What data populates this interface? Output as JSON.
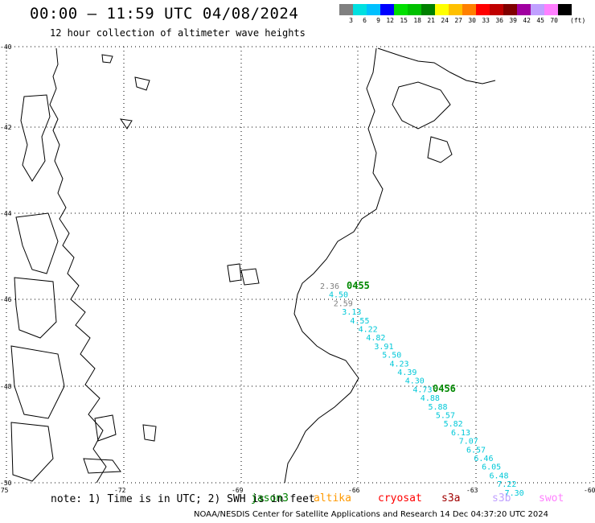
{
  "header": {
    "title": "00:00 – 11:59 UTC 04/08/2024",
    "subtitle": "12 hour collection of altimeter wave heights"
  },
  "legend": {
    "colors": [
      "#808080",
      "#00e0e0",
      "#00c0ff",
      "#0000ff",
      "#00e000",
      "#00c000",
      "#008000",
      "#ffff00",
      "#ffc000",
      "#ff8000",
      "#ff0000",
      "#c00000",
      "#800000",
      "#a000a0",
      "#c0a0ff",
      "#ff80ff",
      "#000000"
    ],
    "labels": [
      "3",
      "6",
      "9",
      "12",
      "15",
      "18",
      "21",
      "24",
      "27",
      "30",
      "33",
      "36",
      "39",
      "42",
      "45",
      "70"
    ],
    "unit": "(ft)"
  },
  "axes": {
    "lat_labels": [
      "-40",
      "-42",
      "-44",
      "-46",
      "-48",
      "-50"
    ],
    "lon_labels": [
      "-75",
      "-72",
      "-69",
      "-66",
      "-63",
      "-60"
    ]
  },
  "track": {
    "time_marks": [
      "0455",
      "0456"
    ],
    "points": [
      {
        "v": "2.36",
        "c": "#808080"
      },
      {
        "v": "4.50",
        "c": "#00c8d8"
      },
      {
        "v": "2.59",
        "c": "#808080"
      },
      {
        "v": "3.13",
        "c": "#00c8d8"
      },
      {
        "v": "4.55",
        "c": "#00c8d8"
      },
      {
        "v": "4.22",
        "c": "#00c8d8"
      },
      {
        "v": "4.82",
        "c": "#00c8d8"
      },
      {
        "v": "3.91",
        "c": "#00c8d8"
      },
      {
        "v": "5.50",
        "c": "#00c8d8"
      },
      {
        "v": "4.23",
        "c": "#00c8d8"
      },
      {
        "v": "4.39",
        "c": "#00c8d8"
      },
      {
        "v": "4.30",
        "c": "#00c8d8"
      },
      {
        "v": "4.73",
        "c": "#00c8d8"
      },
      {
        "v": "4.88",
        "c": "#00c8d8"
      },
      {
        "v": "5.88",
        "c": "#00c8d8"
      },
      {
        "v": "5.57",
        "c": "#00c8d8"
      },
      {
        "v": "5.82",
        "c": "#00c8d8"
      },
      {
        "v": "6.13",
        "c": "#00c8d8"
      },
      {
        "v": "7.07",
        "c": "#00c8d8"
      },
      {
        "v": "6.57",
        "c": "#00c8d8"
      },
      {
        "v": "6.46",
        "c": "#00c8d8"
      },
      {
        "v": "6.05",
        "c": "#00c8d8"
      },
      {
        "v": "6.48",
        "c": "#00c8d8"
      },
      {
        "v": "7.22",
        "c": "#00c8d8"
      },
      {
        "v": "7.30",
        "c": "#00c8d8"
      }
    ]
  },
  "footer": {
    "note": "note: 1) Time is in UTC; 2) SWH is in feet",
    "satellites": [
      {
        "name": "jason3",
        "color": "#008000"
      },
      {
        "name": "altika",
        "color": "#ff9900"
      },
      {
        "name": "cryosat",
        "color": "#ff0000"
      },
      {
        "name": "s3a",
        "color": "#a00000"
      },
      {
        "name": "s3b",
        "color": "#c0a0ff"
      },
      {
        "name": "swot",
        "color": "#ff80ff"
      }
    ],
    "credit": "NOAA/NESDIS Center for Satellite Applications and Research    14 Dec 04:37:20 UTC 2024"
  }
}
